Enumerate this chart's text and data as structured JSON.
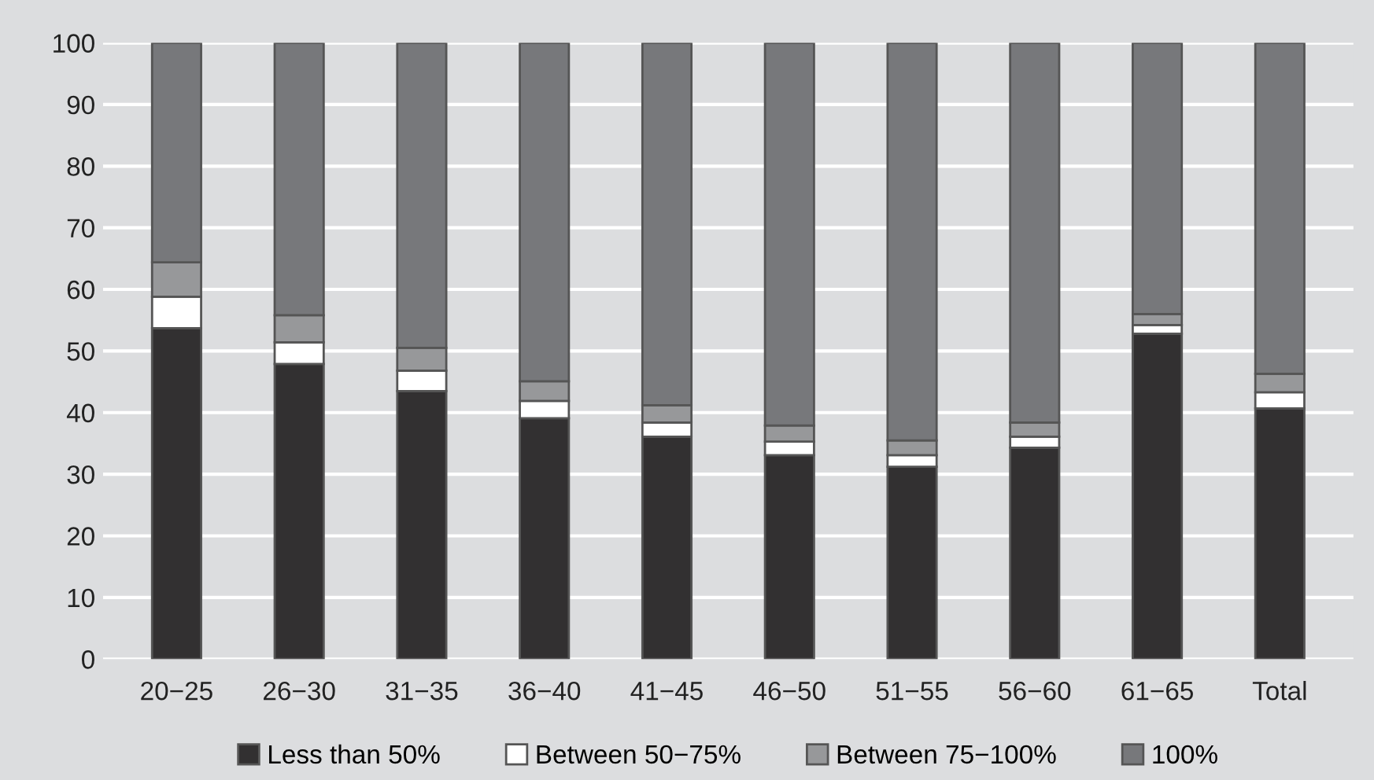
{
  "chart_data": {
    "type": "bar",
    "stacked": true,
    "categories": [
      "20−25",
      "26−30",
      "31−35",
      "36−40",
      "41−45",
      "46−50",
      "51−55",
      "56−60",
      "61−65",
      "Total"
    ],
    "series": [
      {
        "name": "Less than 50%",
        "color": "#323031",
        "values": [
          53.7,
          47.9,
          43.5,
          39.1,
          36.1,
          33.1,
          31.2,
          34.3,
          52.8,
          40.7
        ]
      },
      {
        "name": "Between 50−75%",
        "color": "#ffffff",
        "values": [
          5.1,
          3.5,
          3.3,
          2.8,
          2.3,
          2.2,
          1.9,
          1.8,
          1.4,
          2.6
        ]
      },
      {
        "name": "Between 75−100%",
        "color": "#97989a",
        "values": [
          5.6,
          4.4,
          3.7,
          3.2,
          2.8,
          2.6,
          2.4,
          2.3,
          1.8,
          3.0
        ]
      },
      {
        "name": "100%",
        "color": "#77787b",
        "values": [
          35.6,
          44.2,
          49.5,
          54.9,
          58.8,
          62.1,
          64.5,
          61.6,
          44.0,
          53.7
        ]
      }
    ],
    "ylim": [
      0,
      100
    ],
    "yticks": [
      0,
      10,
      20,
      30,
      40,
      50,
      60,
      70,
      80,
      90,
      100
    ],
    "grid": "y",
    "legend": "bottom"
  }
}
